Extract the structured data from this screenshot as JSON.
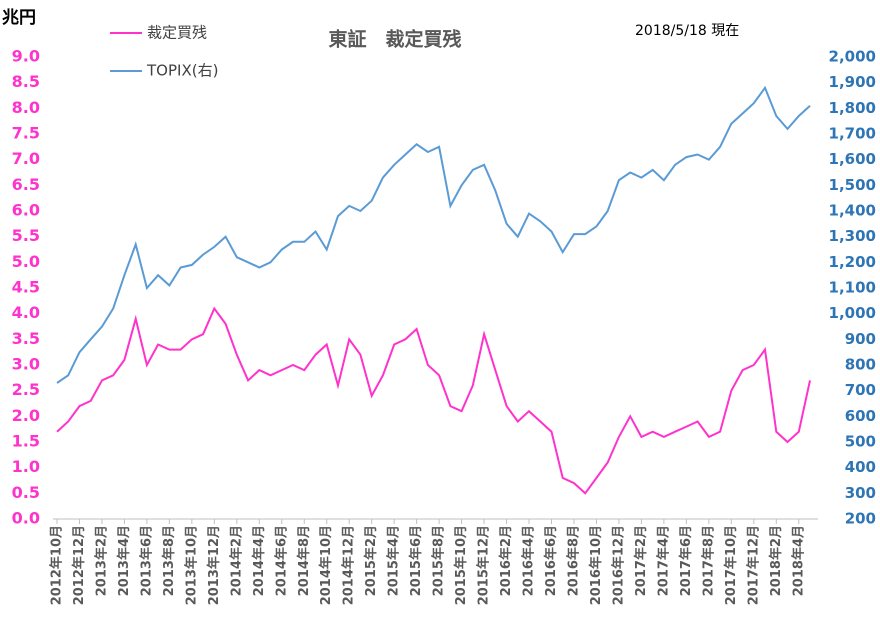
{
  "chart_data": {
    "type": "line",
    "title": "東証　裁定買残",
    "subtitle": "2018/5/18 現在",
    "y_label": "兆円",
    "categories": [
      "2012年10月",
      null,
      "2012年12月",
      null,
      "2013年2月",
      null,
      "2013年4月",
      null,
      "2013年6月",
      null,
      "2013年8月",
      null,
      "2013年10月",
      null,
      "2013年12月",
      null,
      "2014年2月",
      null,
      "2014年4月",
      null,
      "2014年6月",
      null,
      "2014年8月",
      null,
      "2014年10月",
      null,
      "2014年12月",
      null,
      "2015年2月",
      null,
      "2015年4月",
      null,
      "2015年6月",
      null,
      "2015年8月",
      null,
      "2015年10月",
      null,
      "2015年12月",
      null,
      "2016年2月",
      null,
      "2016年4月",
      null,
      "2016年6月",
      null,
      "2016年8月",
      null,
      "2016年10月",
      null,
      "2016年12月",
      null,
      "2017年2月",
      null,
      "2017年4月",
      null,
      "2017年6月",
      null,
      "2017年8月",
      null,
      "2017年10月",
      null,
      "2017年12月",
      null,
      "2018年2月",
      null,
      "2018年4月",
      null
    ],
    "series": [
      {
        "name": "裁定買残",
        "color": "#ff33cc",
        "axis": "y",
        "values": [
          1.7,
          1.9,
          2.2,
          2.3,
          2.7,
          2.8,
          3.1,
          3.9,
          3.0,
          3.4,
          3.3,
          3.3,
          3.5,
          3.6,
          4.1,
          3.8,
          3.2,
          2.7,
          2.9,
          2.8,
          2.9,
          3.0,
          2.9,
          3.2,
          3.4,
          2.6,
          3.5,
          3.2,
          2.4,
          2.8,
          3.4,
          3.5,
          3.7,
          3.0,
          2.8,
          2.2,
          2.1,
          2.6,
          3.6,
          2.9,
          2.2,
          1.9,
          2.1,
          1.9,
          1.7,
          0.8,
          0.7,
          0.5,
          0.8,
          1.1,
          1.6,
          2.0,
          1.6,
          1.7,
          1.6,
          1.7,
          1.8,
          1.9,
          1.6,
          1.7,
          2.5,
          2.9,
          3.0,
          3.3,
          1.7,
          1.5,
          1.7,
          2.7
        ]
      },
      {
        "name": "TOPIX(右)",
        "color": "#5b9bd5",
        "axis": "y2",
        "values": [
          730,
          760,
          850,
          900,
          950,
          1020,
          1150,
          1270,
          1100,
          1150,
          1110,
          1180,
          1190,
          1230,
          1260,
          1300,
          1220,
          1200,
          1180,
          1200,
          1250,
          1280,
          1280,
          1320,
          1250,
          1380,
          1420,
          1400,
          1440,
          1530,
          1580,
          1620,
          1660,
          1630,
          1650,
          1420,
          1500,
          1560,
          1580,
          1480,
          1350,
          1300,
          1390,
          1360,
          1320,
          1240,
          1310,
          1310,
          1340,
          1400,
          1520,
          1550,
          1530,
          1560,
          1520,
          1580,
          1610,
          1620,
          1600,
          1650,
          1740,
          1780,
          1820,
          1880,
          1770,
          1720,
          1770,
          1810
        ]
      }
    ],
    "ylim": [
      0,
      9
    ],
    "yticks": [
      {
        "value": 0,
        "label": "0.0"
      },
      0.5,
      {
        "value": 1,
        "label": "1.0"
      },
      1.5,
      {
        "value": 2,
        "label": "2.0"
      },
      2.5,
      {
        "value": 3,
        "label": "3.0"
      },
      3.5,
      {
        "value": 4,
        "label": "4.0"
      },
      4.5,
      {
        "value": 5,
        "label": "5.0"
      },
      5.5,
      {
        "value": 6,
        "label": "6.0"
      },
      6.5,
      {
        "value": 7,
        "label": "7.0"
      },
      7.5,
      {
        "value": 8,
        "label": "8.0"
      },
      8.5,
      {
        "value": 9,
        "label": "9.0"
      }
    ],
    "y2lim": [
      200,
      2000
    ],
    "y2ticks": [
      200,
      300,
      400,
      500,
      600,
      700,
      800,
      900,
      {
        "value": 1000,
        "label": "1,000"
      },
      {
        "value": 1100,
        "label": "1,100"
      },
      {
        "value": 1200,
        "label": "1,200"
      },
      {
        "value": 1300,
        "label": "1,300"
      },
      {
        "value": 1400,
        "label": "1,400"
      },
      {
        "value": 1500,
        "label": "1,500"
      },
      {
        "value": 1600,
        "label": "1,600"
      },
      {
        "value": 1700,
        "label": "1,700"
      },
      {
        "value": 1800,
        "label": "1,800"
      },
      {
        "value": 1900,
        "label": "1,900"
      },
      {
        "value": 2000,
        "label": "2,000"
      }
    ],
    "grid": false
  }
}
